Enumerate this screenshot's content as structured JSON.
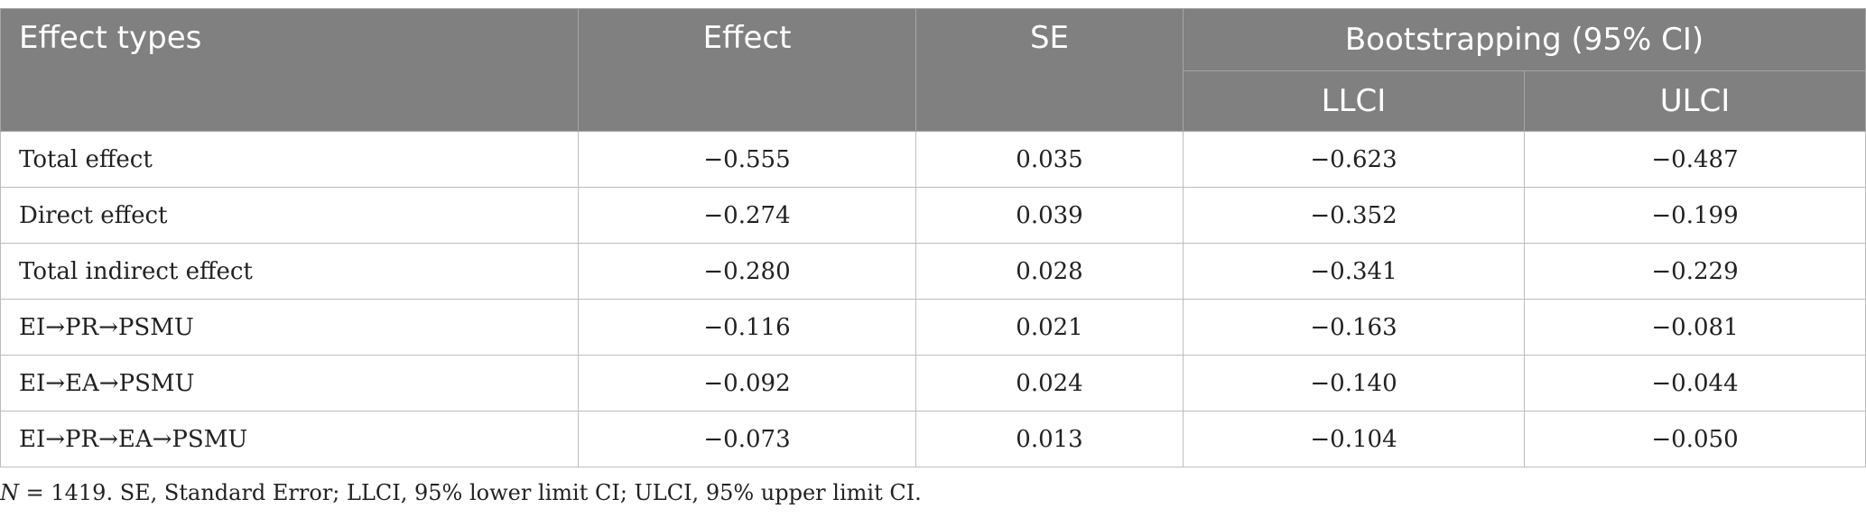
{
  "table": {
    "headers": {
      "effect_types": "Effect types",
      "effect": "Effect",
      "se": "SE",
      "bootstrapping": "Bootstrapping (95% CI)",
      "llci": "LLCI",
      "ulci": "ULCI"
    },
    "rows": [
      {
        "label": "Total effect",
        "effect": "−0.555",
        "se": "0.035",
        "llci": "−0.623",
        "ulci": "−0.487"
      },
      {
        "label": "Direct effect",
        "effect": "−0.274",
        "se": "0.039",
        "llci": "−0.352",
        "ulci": "−0.199"
      },
      {
        "label": "Total indirect effect",
        "effect": "−0.280",
        "se": "0.028",
        "llci": "−0.341",
        "ulci": "−0.229"
      },
      {
        "label": "EI→PR→PSMU",
        "effect": "−0.116",
        "se": "0.021",
        "llci": "−0.163",
        "ulci": "−0.081"
      },
      {
        "label": "EI→EA→PSMU",
        "effect": "−0.092",
        "se": "0.024",
        "llci": "−0.140",
        "ulci": "−0.044"
      },
      {
        "label": "EI→PR→EA→PSMU",
        "effect": "−0.073",
        "se": "0.013",
        "llci": "−0.104",
        "ulci": "−0.050"
      }
    ]
  },
  "note": {
    "n_symbol": "N",
    "text": " = 1419. SE, Standard Error; LLCI, 95% lower limit CI; ULCI, 95% upper limit CI."
  }
}
